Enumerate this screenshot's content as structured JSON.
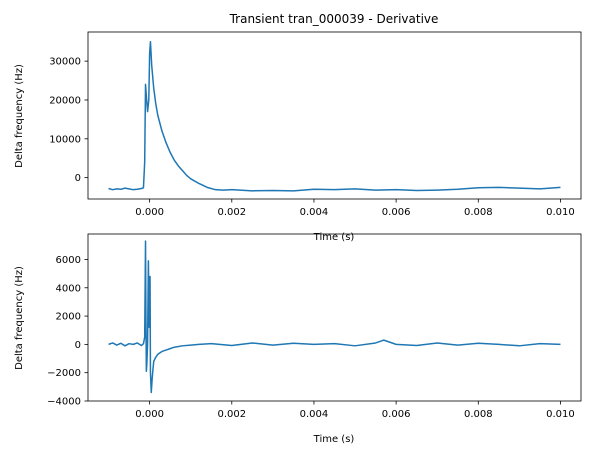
{
  "figure": {
    "title": "Transient tran_000039 - Derivative"
  },
  "chart_data": [
    {
      "type": "line",
      "title": "Transient tran_000039 - Derivative",
      "xlabel": "Time (s)",
      "ylabel": "Delta frequency (Hz)",
      "xlim": [
        -0.0015,
        0.0105
      ],
      "ylim": [
        -5500,
        37500
      ],
      "xticks": [
        0.0,
        0.002,
        0.004,
        0.006,
        0.008,
        0.01
      ],
      "xtick_labels": [
        "0.000",
        "0.002",
        "0.004",
        "0.006",
        "0.008",
        "0.010"
      ],
      "yticks": [
        0,
        10000,
        20000,
        30000
      ],
      "ytick_labels": [
        "0",
        "10000",
        "20000",
        "30000"
      ],
      "color": "#1f77b4",
      "series": [
        {
          "x": [
            -0.001,
            -0.0009,
            -0.0008,
            -0.0007,
            -0.0006,
            -0.0005,
            -0.0004,
            -0.0003,
            -0.0002,
            -0.00015,
            -0.00012,
            -0.0001,
            -8e-05,
            -5e-05,
            -2e-05,
            0.0,
            2e-05,
            5e-05,
            0.0001,
            0.00015,
            0.0002,
            0.0003,
            0.0004,
            0.0005,
            0.0006,
            0.0007,
            0.0008,
            0.0009,
            0.001,
            0.0012,
            0.0014,
            0.0016,
            0.0018,
            0.002,
            0.0025,
            0.003,
            0.0035,
            0.004,
            0.0045,
            0.005,
            0.0055,
            0.006,
            0.0065,
            0.007,
            0.0075,
            0.008,
            0.0085,
            0.009,
            0.0095,
            0.01
          ],
          "y": [
            -2800,
            -3100,
            -2900,
            -3000,
            -2700,
            -2900,
            -3100,
            -3000,
            -2800,
            -2600,
            4000,
            24000,
            21000,
            17000,
            20000,
            32000,
            35000,
            29000,
            23000,
            19000,
            16000,
            12000,
            9000,
            6500,
            4500,
            3000,
            1800,
            600,
            -300,
            -1500,
            -2500,
            -3100,
            -3200,
            -3100,
            -3400,
            -3300,
            -3400,
            -3000,
            -3100,
            -2900,
            -3200,
            -3100,
            -3300,
            -3200,
            -3000,
            -2600,
            -2500,
            -2700,
            -2900,
            -2500
          ]
        }
      ]
    },
    {
      "type": "line",
      "title": "",
      "xlabel": "Time (s)",
      "ylabel": "Delta frequency (Hz)",
      "xlim": [
        -0.0015,
        0.0105
      ],
      "ylim": [
        -4000,
        7800
      ],
      "xticks": [
        0.0,
        0.002,
        0.004,
        0.006,
        0.008,
        0.01
      ],
      "xtick_labels": [
        "0.000",
        "0.002",
        "0.004",
        "0.006",
        "0.008",
        "0.010"
      ],
      "yticks": [
        -4000,
        -2000,
        0,
        2000,
        4000,
        6000
      ],
      "ytick_labels": [
        "−4000",
        "−2000",
        "0",
        "2000",
        "4000",
        "6000"
      ],
      "color": "#1f77b4",
      "series": [
        {
          "x": [
            -0.001,
            -0.0009,
            -0.0008,
            -0.0007,
            -0.0006,
            -0.0005,
            -0.0004,
            -0.0003,
            -0.0002,
            -0.00015,
            -0.00012,
            -0.0001,
            -9e-05,
            -8e-05,
            -7e-05,
            -5e-05,
            -3e-05,
            -1e-05,
            1e-05,
            2e-05,
            4e-05,
            6e-05,
            8e-05,
            0.0001,
            0.00015,
            0.0002,
            0.0003,
            0.0004,
            0.0005,
            0.0006,
            0.0008,
            0.001,
            0.0012,
            0.0015,
            0.002,
            0.0025,
            0.003,
            0.0035,
            0.004,
            0.0045,
            0.005,
            0.0055,
            0.0057,
            0.006,
            0.0065,
            0.007,
            0.0075,
            0.008,
            0.0085,
            0.009,
            0.0095,
            0.01
          ],
          "y": [
            0,
            100,
            -50,
            80,
            -100,
            50,
            0,
            100,
            -80,
            50,
            500,
            7300,
            2000,
            -1900,
            -1500,
            0,
            5900,
            1200,
            4800,
            -2000,
            -3400,
            -2500,
            -1800,
            -1200,
            -900,
            -700,
            -500,
            -400,
            -300,
            -200,
            -100,
            -50,
            0,
            50,
            -80,
            100,
            -50,
            80,
            0,
            50,
            -100,
            100,
            300,
            0,
            -80,
            100,
            -50,
            80,
            0,
            -100,
            50,
            0
          ]
        }
      ]
    }
  ]
}
